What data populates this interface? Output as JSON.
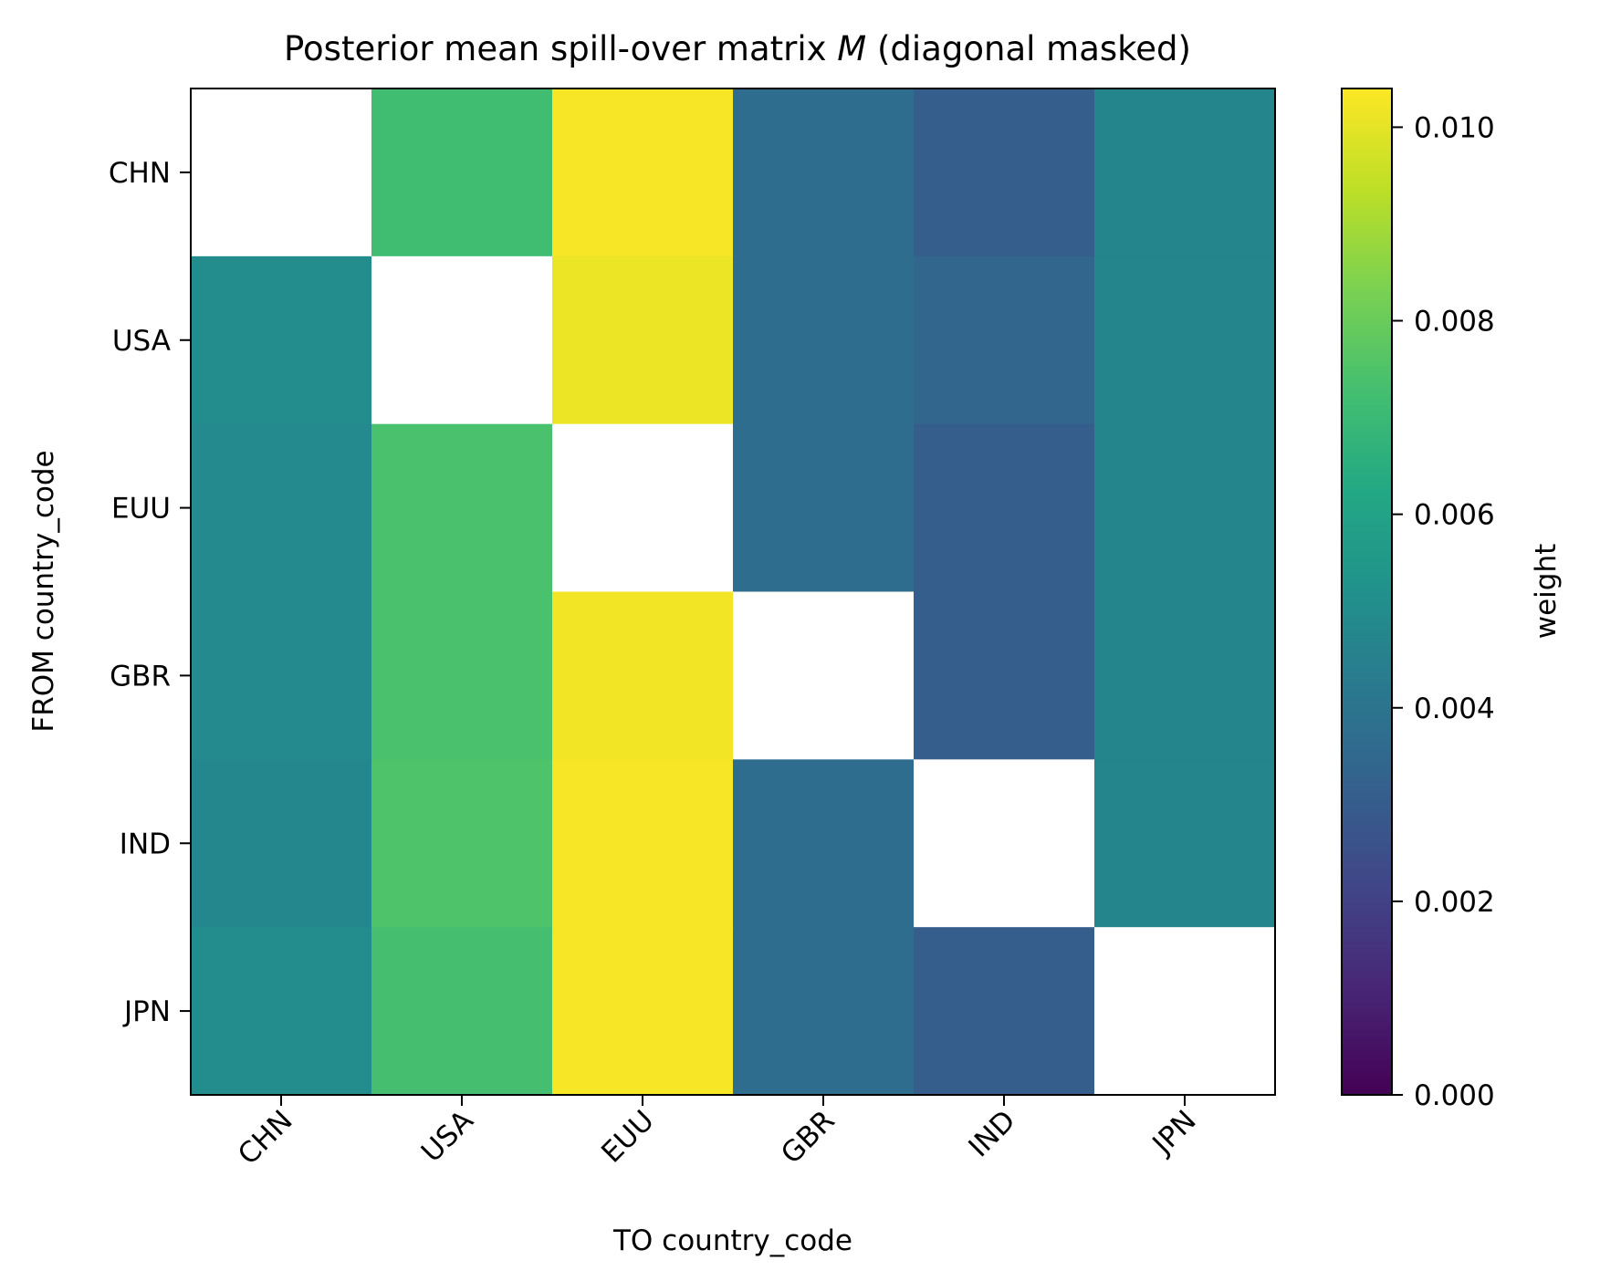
{
  "chart_data": {
    "type": "heatmap",
    "title": "Posterior mean spill-over matrix",
    "title_symbol": "M",
    "title_suffix": "(diagonal masked)",
    "xlabel": "TO country_code",
    "ylabel": "FROM country_code",
    "x_categories": [
      "CHN",
      "USA",
      "EUU",
      "GBR",
      "IND",
      "JPN"
    ],
    "y_categories": [
      "CHN",
      "USA",
      "EUU",
      "GBR",
      "IND",
      "JPN"
    ],
    "values": [
      [
        null,
        0.0072,
        0.0103,
        0.0037,
        0.0031,
        0.0047
      ],
      [
        0.005,
        null,
        0.0101,
        0.0037,
        0.0034,
        0.0047
      ],
      [
        0.0049,
        0.0074,
        null,
        0.0037,
        0.0031,
        0.0047
      ],
      [
        0.0049,
        0.0074,
        0.0102,
        null,
        0.0031,
        0.0047
      ],
      [
        0.0048,
        0.0075,
        0.0103,
        0.0037,
        null,
        0.0047
      ],
      [
        0.005,
        0.0073,
        0.0103,
        0.0037,
        0.0031,
        null
      ]
    ],
    "masked": "diagonal",
    "colormap": "viridis",
    "colorbar": {
      "label": "weight",
      "range": [
        0.0,
        0.0104
      ],
      "ticks": [
        "0.000",
        "0.002",
        "0.004",
        "0.006",
        "0.008",
        "0.010"
      ],
      "tick_values": [
        0.0,
        0.002,
        0.004,
        0.006,
        0.008,
        0.01
      ]
    }
  }
}
